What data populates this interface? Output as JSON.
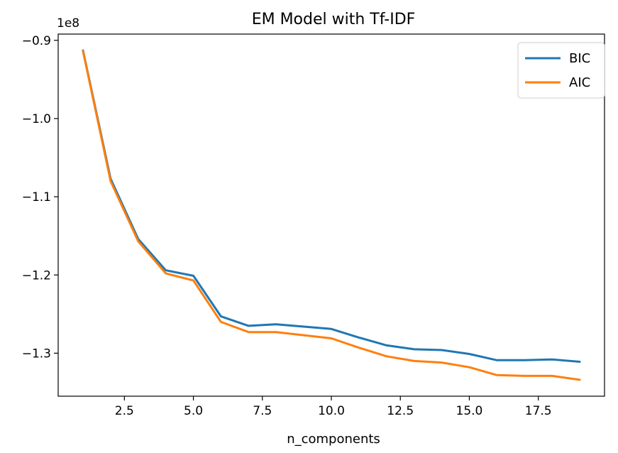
{
  "chart_data": {
    "type": "line",
    "title": "EM Model with Tf-IDF",
    "xlabel": "n_components",
    "ylabel": "",
    "y_offset_label": "1e8",
    "xlim": [
      0.1,
      19.9
    ],
    "ylim": [
      -1.355,
      -0.892
    ],
    "y_scale_note": "values in units of 1e8",
    "xticks": [
      2.5,
      5.0,
      7.5,
      10.0,
      12.5,
      15.0,
      17.5
    ],
    "xtick_labels": [
      "2.5",
      "5.0",
      "7.5",
      "10.0",
      "12.5",
      "15.0",
      "17.5"
    ],
    "yticks": [
      -0.9,
      -1.0,
      -1.1,
      -1.2,
      -1.3
    ],
    "ytick_labels": [
      "−0.9",
      "−1.0",
      "−1.1",
      "−1.2",
      "−1.3"
    ],
    "x": [
      1,
      2,
      3,
      4,
      5,
      6,
      7,
      8,
      9,
      10,
      11,
      12,
      13,
      14,
      15,
      16,
      17,
      18,
      19
    ],
    "series": [
      {
        "name": "BIC",
        "color": "#1f77b4",
        "values": [
          -0.913,
          -1.077,
          -1.154,
          -1.194,
          -1.201,
          -1.253,
          -1.265,
          -1.263,
          -1.266,
          -1.269,
          -1.28,
          -1.29,
          -1.295,
          -1.296,
          -1.301,
          -1.309,
          -1.309,
          -1.308,
          -1.311
        ]
      },
      {
        "name": "AIC",
        "color": "#ff7f0e",
        "values": [
          -0.914,
          -1.08,
          -1.157,
          -1.198,
          -1.207,
          -1.26,
          -1.273,
          -1.273,
          -1.277,
          -1.281,
          -1.293,
          -1.304,
          -1.31,
          -1.312,
          -1.318,
          -1.328,
          -1.329,
          -1.329,
          -1.334
        ]
      }
    ],
    "grid": false,
    "legend_position": "top-right"
  }
}
